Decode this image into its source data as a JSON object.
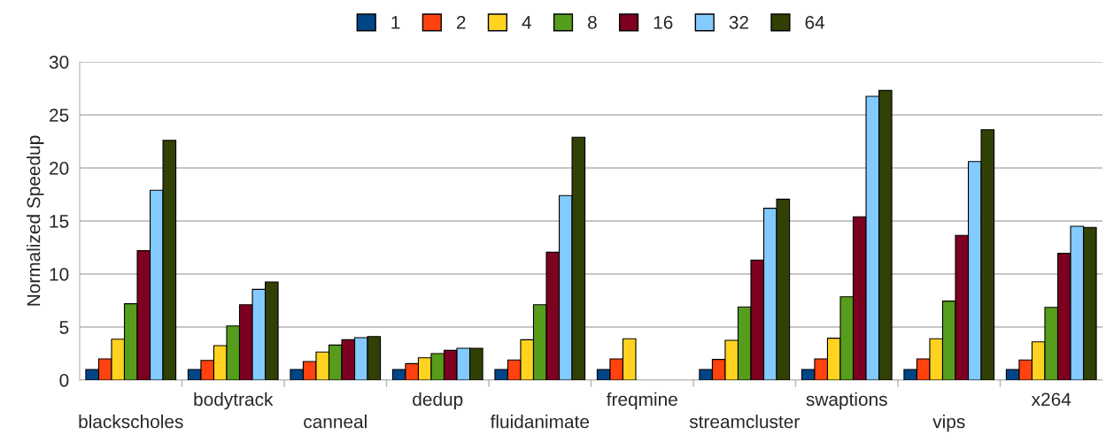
{
  "chart_data": {
    "type": "bar",
    "ylabel": "Normalized Speedup",
    "categories": [
      "blackscholes",
      "bodytrack",
      "canneal",
      "dedup",
      "fluidanimate",
      "freqmine",
      "streamcluster",
      "swaptions",
      "vips",
      "x264"
    ],
    "series": [
      {
        "name": "1",
        "color": "#004586",
        "values": [
          1,
          1,
          1,
          1,
          1,
          1,
          1,
          1,
          1,
          1
        ]
      },
      {
        "name": "2",
        "color": "#ff420e",
        "values": [
          2,
          1.85,
          1.75,
          1.55,
          1.9,
          2,
          1.95,
          2,
          2,
          1.9
        ]
      },
      {
        "name": "4",
        "color": "#ffd320",
        "values": [
          3.85,
          3.25,
          2.65,
          2.1,
          3.8,
          3.9,
          3.75,
          3.95,
          3.9,
          3.6
        ]
      },
      {
        "name": "8",
        "color": "#579d1c",
        "values": [
          7.2,
          5.1,
          3.3,
          2.5,
          7.1,
          null,
          6.9,
          7.85,
          7.45,
          6.85
        ]
      },
      {
        "name": "16",
        "color": "#7e0021",
        "values": [
          12.2,
          7.1,
          3.8,
          2.8,
          12.05,
          null,
          11.3,
          15.4,
          13.65,
          11.95
        ]
      },
      {
        "name": "32",
        "color": "#83caff",
        "values": [
          17.9,
          8.55,
          4.0,
          3.0,
          17.4,
          null,
          16.2,
          26.75,
          20.6,
          14.5
        ]
      },
      {
        "name": "64",
        "color": "#314004",
        "values": [
          22.6,
          9.25,
          4.1,
          3.0,
          22.9,
          null,
          17.05,
          27.3,
          23.6,
          14.4
        ]
      }
    ],
    "ylim": [
      0,
      30
    ],
    "yticks": [
      0,
      5,
      10,
      15,
      20,
      25,
      30
    ],
    "grid": "y",
    "legend": "top"
  }
}
